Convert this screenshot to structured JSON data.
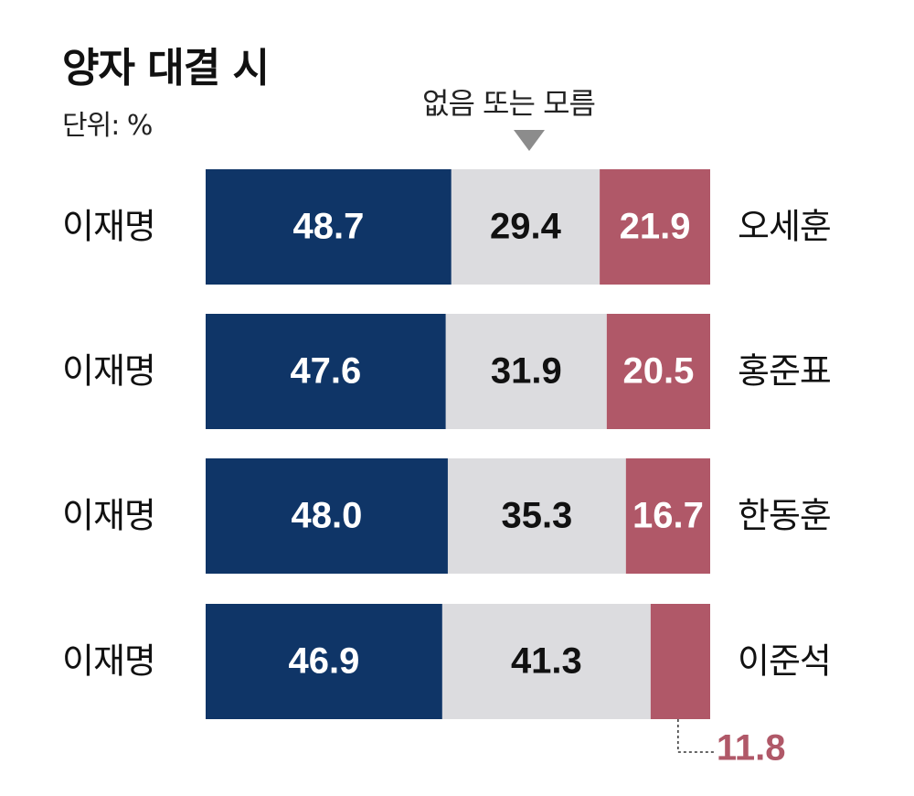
{
  "chart_data": {
    "type": "bar",
    "stacked": true,
    "orientation": "horizontal",
    "title": "양자 대결 시",
    "unit_label": "단위: %",
    "middle_label": "없음 또는 모름",
    "rows": [
      {
        "left_name": "이재명",
        "left_value": 48.7,
        "middle_value": 29.4,
        "right_value": 21.9,
        "right_name": "오세훈"
      },
      {
        "left_name": "이재명",
        "left_value": 47.6,
        "middle_value": 31.9,
        "right_value": 20.5,
        "right_name": "홍준표"
      },
      {
        "left_name": "이재명",
        "left_value": 48.0,
        "middle_value": 35.3,
        "right_value": 16.7,
        "right_name": "한동훈"
      },
      {
        "left_name": "이재명",
        "left_value": 46.9,
        "middle_value": 41.3,
        "right_value": 11.8,
        "right_name": "이준석"
      }
    ],
    "xlim": [
      0,
      100
    ],
    "colors": {
      "left": "#0f3567",
      "middle": "#dcdcdf",
      "right": "#b05868"
    }
  }
}
